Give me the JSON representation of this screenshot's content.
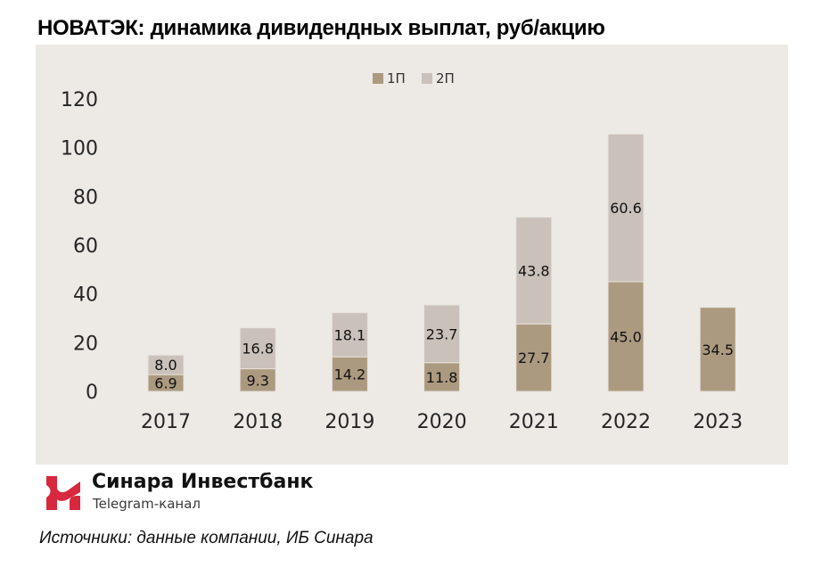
{
  "title": "НОВАТЭК: динамика дивидендных выплат, руб/акцию",
  "brand": {
    "name": "Синара Инвестбанк",
    "subtitle": "Telegram-канал",
    "logo_icon": "sinara-logo-icon",
    "logo_color": "#d7283d"
  },
  "source": "Источники: данные компании, ИБ Синара",
  "colors": {
    "panel_bg": "#edeae5",
    "series_1": "#ac9a80",
    "series_2": "#c9c1ba"
  },
  "chart_data": {
    "type": "bar",
    "stacked": true,
    "title": "НОВАТЭК: динамика дивидендных выплат, руб/акцию",
    "xlabel": "",
    "ylabel": "",
    "categories": [
      "2017",
      "2018",
      "2019",
      "2020",
      "2021",
      "2022",
      "2023"
    ],
    "series": [
      {
        "name": "1П",
        "color": "#ac9a80",
        "values": [
          6.9,
          9.3,
          14.2,
          11.8,
          27.7,
          45.0,
          34.5
        ],
        "labels": [
          "6.9",
          "9.3",
          "14.2",
          "11.8",
          "27.7",
          "45.0",
          "34.5"
        ]
      },
      {
        "name": "2П",
        "color": "#c9c1ba",
        "values": [
          8.0,
          16.8,
          18.1,
          23.7,
          43.8,
          60.6,
          null
        ],
        "labels": [
          "8.0",
          "16.8",
          "18.1",
          "23.7",
          "43.8",
          "60.6",
          null
        ]
      }
    ],
    "ylim": [
      0,
      120
    ],
    "yticks": [
      "0",
      "20",
      "40",
      "60",
      "80",
      "100",
      "120"
    ],
    "ytick_values": [
      0,
      20,
      40,
      60,
      80,
      100,
      120
    ],
    "grid": false,
    "legend": {
      "position": "top-center",
      "entries": [
        "1П",
        "2П"
      ]
    }
  }
}
